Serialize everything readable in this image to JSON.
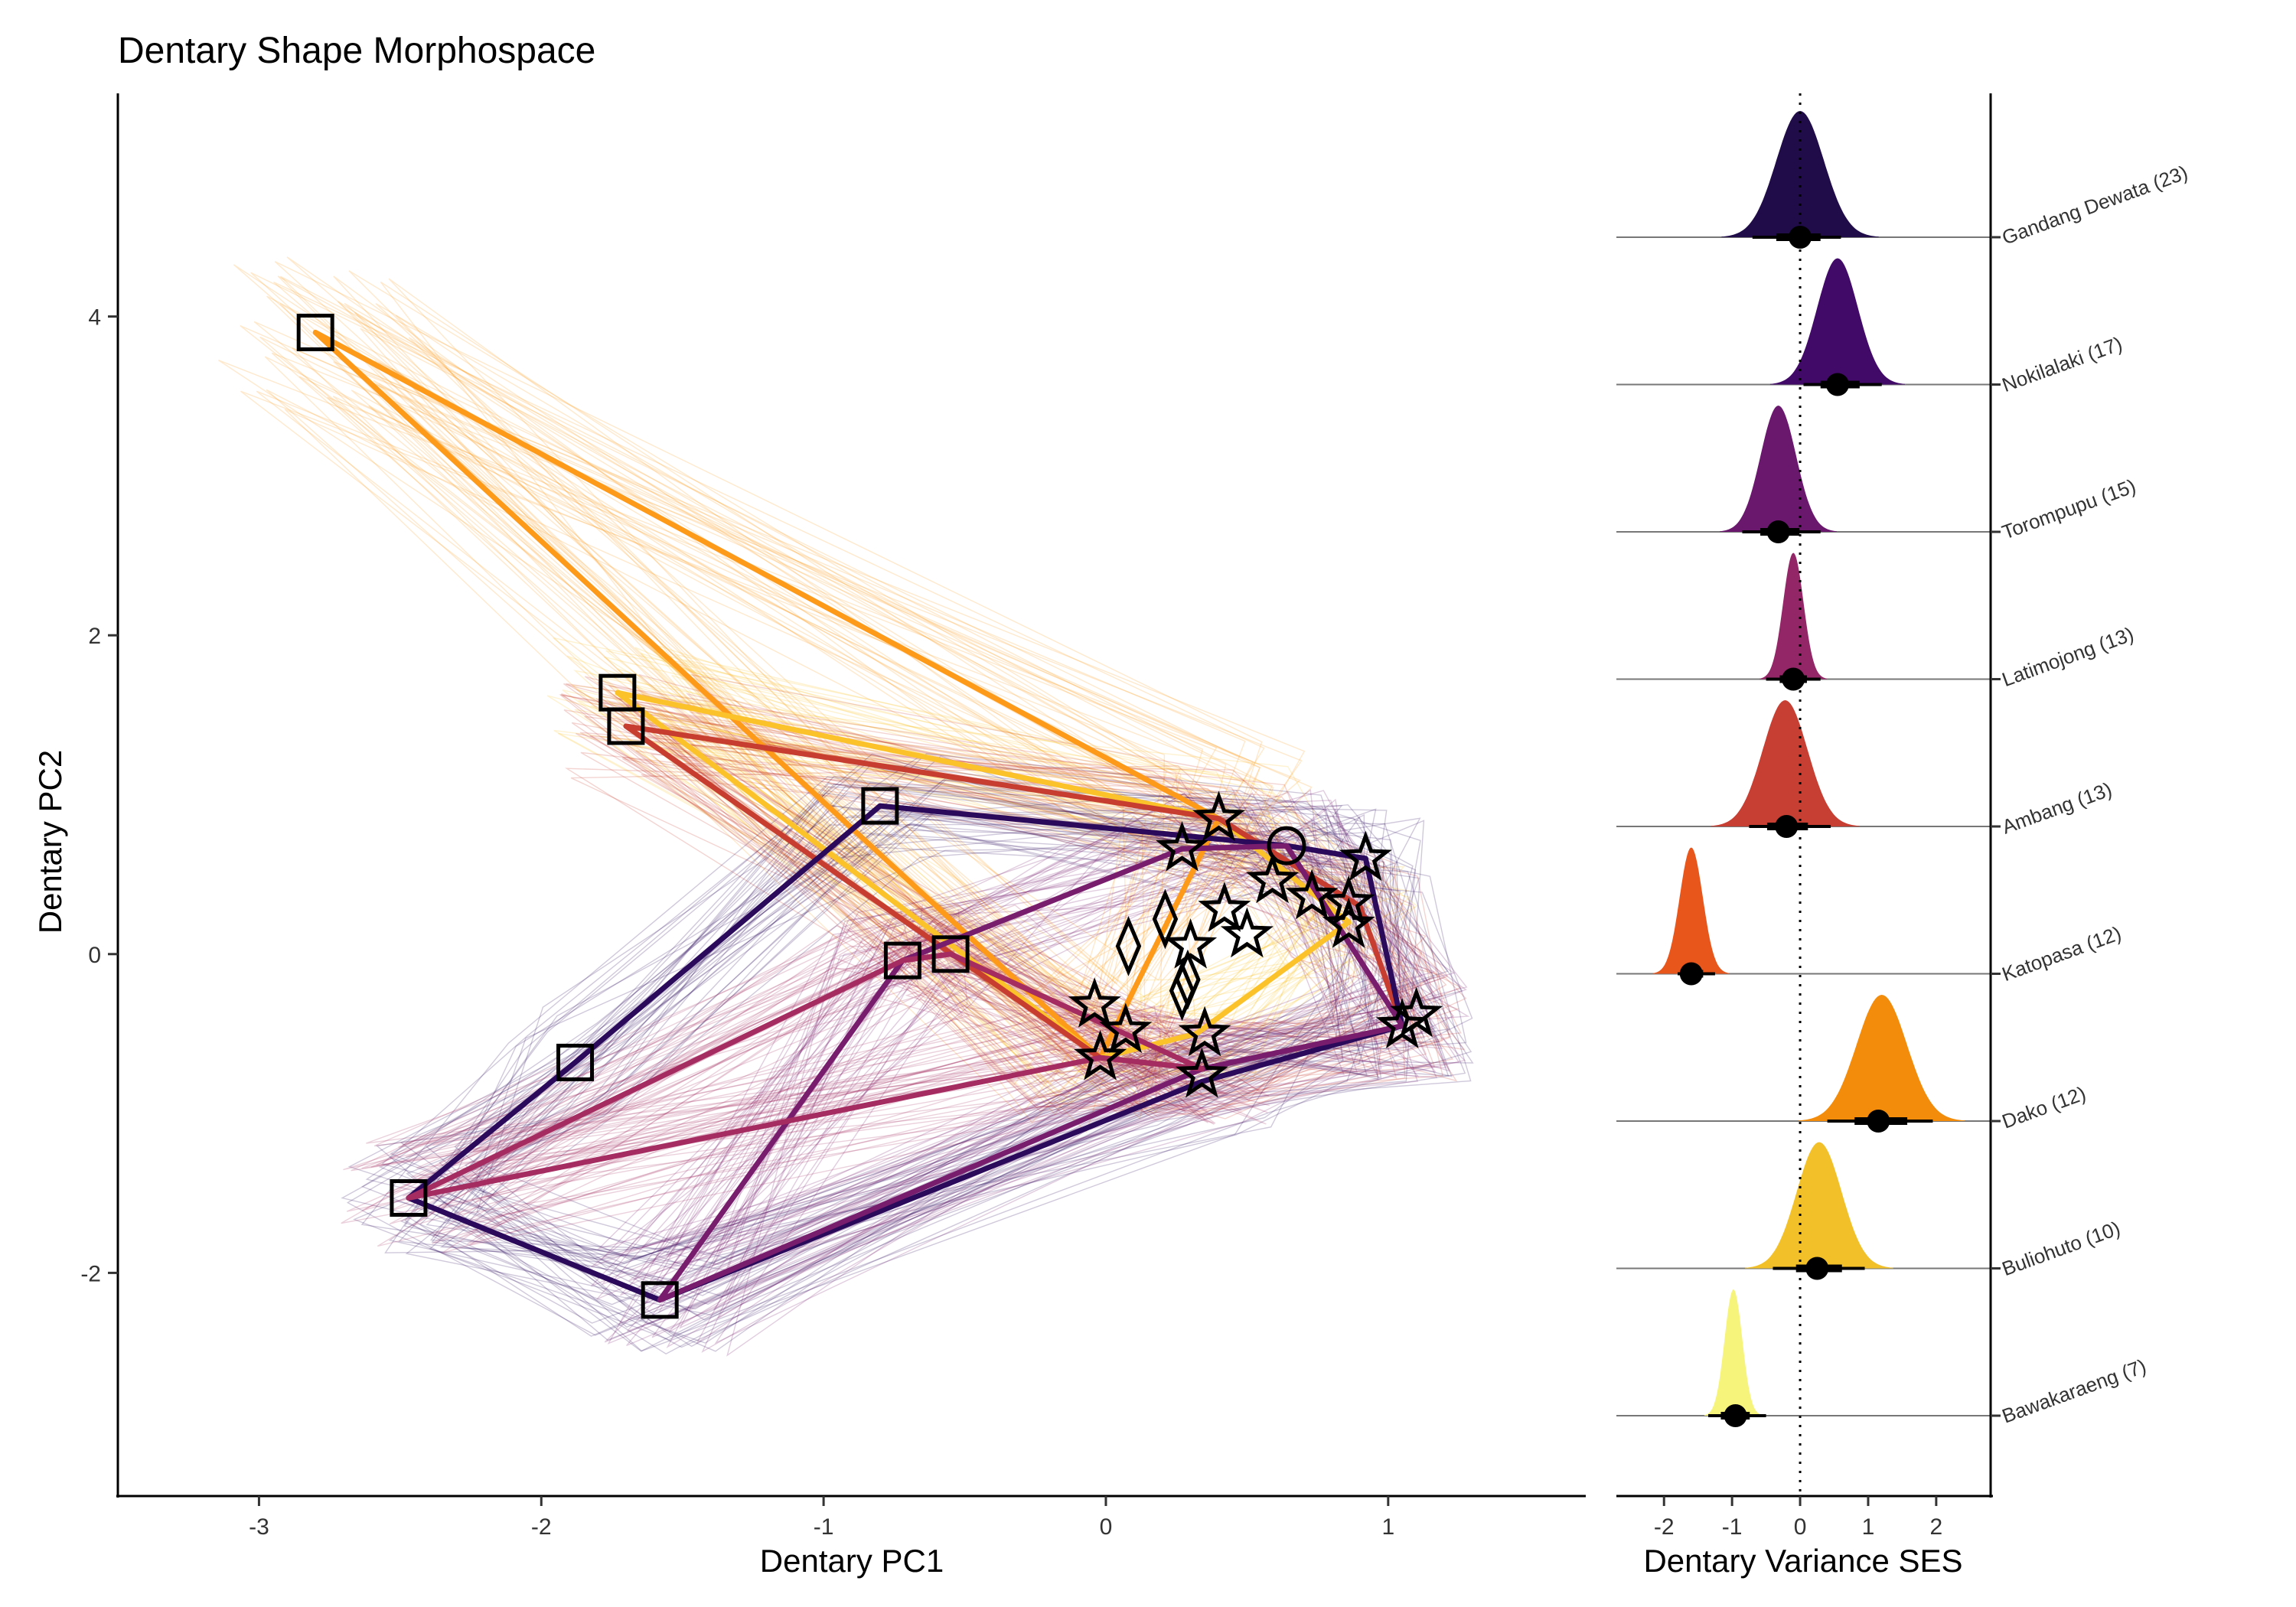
{
  "chart_data": [
    {
      "type": "scatter",
      "title": "Dentary Shape Morphospace",
      "xlabel": "Dentary PC1",
      "ylabel": "Dentary PC2",
      "xlim": [
        -3.5,
        1.7
      ],
      "ylim": [
        -3.4,
        5.4
      ],
      "xticks": [
        -3,
        -2,
        -1,
        0,
        1
      ],
      "yticks": [
        -2,
        0,
        2,
        4
      ],
      "grid": false,
      "legend": "none",
      "hulls": [
        {
          "color": "#fd9a1a",
          "points": [
            [
              -2.8,
              3.9
            ],
            [
              0.4,
              0.85
            ],
            [
              -0.02,
              -0.65
            ]
          ]
        },
        {
          "color": "#fcc229",
          "points": [
            [
              -1.73,
              1.64
            ],
            [
              0.4,
              0.85
            ],
            [
              0.86,
              0.2
            ],
            [
              0.32,
              -0.5
            ],
            [
              -0.02,
              -0.65
            ]
          ]
        },
        {
          "color": "#c73d2f",
          "points": [
            [
              -1.7,
              1.43
            ],
            [
              0.4,
              0.85
            ],
            [
              0.9,
              0.3
            ],
            [
              1.05,
              -0.45
            ],
            [
              0.34,
              -0.72
            ],
            [
              -0.02,
              -0.65
            ]
          ]
        },
        {
          "color": "#2b0a5c",
          "points": [
            [
              -0.8,
              0.93
            ],
            [
              0.64,
              0.68
            ],
            [
              0.92,
              0.6
            ],
            [
              1.05,
              -0.45
            ],
            [
              0.34,
              -0.8
            ],
            [
              -1.58,
              -2.17
            ],
            [
              -2.47,
              -1.53
            ],
            [
              -1.88,
              -0.68
            ]
          ]
        },
        {
          "color": "#781c6d",
          "points": [
            [
              -0.72,
              -0.04
            ],
            [
              0.27,
              0.66
            ],
            [
              0.64,
              0.68
            ],
            [
              1.05,
              -0.45
            ],
            [
              0.34,
              -0.72
            ],
            [
              -1.58,
              -2.17
            ]
          ]
        },
        {
          "color": "#a52c60",
          "points": [
            [
              -2.47,
              -1.53
            ],
            [
              -0.72,
              -0.04
            ],
            [
              -0.55,
              0.0
            ],
            [
              0.34,
              -0.72
            ],
            [
              -0.02,
              -0.65
            ]
          ]
        }
      ],
      "points": [
        {
          "shape": "square",
          "x": -2.8,
          "y": 3.9
        },
        {
          "shape": "square",
          "x": -1.73,
          "y": 1.64
        },
        {
          "shape": "square",
          "x": -1.7,
          "y": 1.43
        },
        {
          "shape": "square",
          "x": -0.8,
          "y": 0.93
        },
        {
          "shape": "square",
          "x": -0.72,
          "y": -0.04
        },
        {
          "shape": "square",
          "x": -0.55,
          "y": 0.0
        },
        {
          "shape": "square",
          "x": -1.88,
          "y": -0.68
        },
        {
          "shape": "square",
          "x": -2.47,
          "y": -1.53
        },
        {
          "shape": "square",
          "x": -1.58,
          "y": -2.17
        },
        {
          "shape": "circle",
          "x": 0.64,
          "y": 0.68
        },
        {
          "shape": "star",
          "x": 0.4,
          "y": 0.85
        },
        {
          "shape": "star",
          "x": 0.27,
          "y": 0.66
        },
        {
          "shape": "star",
          "x": 0.92,
          "y": 0.6
        },
        {
          "shape": "star",
          "x": 0.59,
          "y": 0.46
        },
        {
          "shape": "star",
          "x": 0.73,
          "y": 0.36
        },
        {
          "shape": "star",
          "x": 0.86,
          "y": 0.32
        },
        {
          "shape": "star",
          "x": 0.86,
          "y": 0.18
        },
        {
          "shape": "star",
          "x": 0.42,
          "y": 0.28
        },
        {
          "shape": "star",
          "x": 0.5,
          "y": 0.12
        },
        {
          "shape": "star",
          "x": 0.3,
          "y": 0.05
        },
        {
          "shape": "star",
          "x": -0.04,
          "y": -0.32
        },
        {
          "shape": "star",
          "x": 0.07,
          "y": -0.48
        },
        {
          "shape": "star",
          "x": -0.02,
          "y": -0.65
        },
        {
          "shape": "star",
          "x": 0.35,
          "y": -0.5
        },
        {
          "shape": "star",
          "x": 0.34,
          "y": -0.76
        },
        {
          "shape": "star",
          "x": 1.1,
          "y": -0.38
        },
        {
          "shape": "star",
          "x": 1.05,
          "y": -0.45
        },
        {
          "shape": "diamond",
          "x": 0.08,
          "y": 0.05
        },
        {
          "shape": "diamond",
          "x": 0.21,
          "y": 0.22
        },
        {
          "shape": "diamond",
          "x": 0.29,
          "y": -0.16
        },
        {
          "shape": "diamond",
          "x": 0.27,
          "y": -0.23
        }
      ]
    },
    {
      "type": "area",
      "xlabel": "Dentary Variance SES",
      "xlim": [
        -2.7,
        2.8
      ],
      "xticks": [
        -2,
        -1,
        0,
        1,
        2
      ],
      "reference_line": 0,
      "series": [
        {
          "name": "Gandang Dewata (23)",
          "color": "#1f0c48",
          "mean": 0.0,
          "sd": 0.35,
          "ci": [
            -0.7,
            0.6
          ]
        },
        {
          "name": "Nokilalaki (17)",
          "color": "#420a68",
          "mean": 0.55,
          "sd": 0.3,
          "ci": [
            0.05,
            1.2
          ]
        },
        {
          "name": "Torompupu (15)",
          "color": "#6a176e",
          "mean": -0.32,
          "sd": 0.26,
          "ci": [
            -0.85,
            0.3
          ]
        },
        {
          "name": "Latimojong (13)",
          "color": "#932667",
          "mean": -0.1,
          "sd": 0.15,
          "ci": [
            -0.5,
            0.3
          ]
        },
        {
          "name": "Ambang (13)",
          "color": "#c73e32",
          "mean": -0.22,
          "sd": 0.33,
          "ci": [
            -0.75,
            0.45
          ]
        },
        {
          "name": "Katopasa (12)",
          "color": "#e8561c",
          "mean": -1.6,
          "sd": 0.17,
          "ci": [
            -1.8,
            -1.25
          ]
        },
        {
          "name": "Dako (12)",
          "color": "#f28c0a",
          "mean": 1.2,
          "sd": 0.37,
          "ci": [
            0.4,
            1.95
          ]
        },
        {
          "name": "Buliohuto (10)",
          "color": "#f2c12a",
          "mean": 0.28,
          "sd": 0.33,
          "ci": [
            -0.4,
            0.95
          ]
        },
        {
          "name": "Bawakaraeng (7)",
          "color": "#f6f47a",
          "mean": -0.98,
          "sd": 0.13,
          "ci": [
            -1.35,
            -0.5
          ]
        }
      ],
      "point_estimates": [
        0.0,
        0.55,
        -0.32,
        -0.1,
        -0.2,
        -1.6,
        1.15,
        0.25,
        -0.95
      ]
    }
  ]
}
